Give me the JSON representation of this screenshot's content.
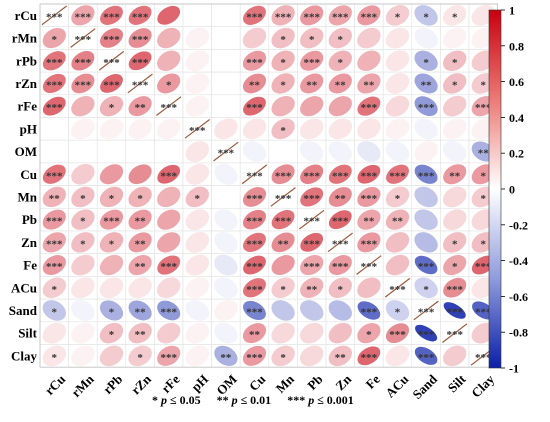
{
  "chart_data": {
    "type": "heatmap",
    "style": "ellipse-correlation",
    "variables": [
      "rCu",
      "rMn",
      "rPb",
      "rZn",
      "rFe",
      "pH",
      "OM",
      "Cu",
      "Mn",
      "Pb",
      "Zn",
      "Fe",
      "ACu",
      "Sand",
      "Silt",
      "Clay"
    ],
    "colorbar": {
      "range": [
        -1,
        1
      ],
      "ticks": [
        "1",
        "0.8",
        "0.6",
        "0.4",
        "0.2",
        "0",
        "-0.2",
        "-0.4",
        "-0.6",
        "-0.8",
        "-1"
      ],
      "colors": {
        "negative": "#0b1fa8",
        "zero": "#ffffff",
        "positive": "#c8000f"
      }
    },
    "matrix": [
      [
        1.0,
        0.35,
        0.55,
        0.55,
        0.6,
        0.0,
        0.0,
        0.55,
        0.3,
        0.4,
        0.35,
        0.4,
        0.2,
        -0.25,
        0.1,
        0.1
      ],
      [
        0.35,
        1.0,
        0.5,
        0.45,
        0.3,
        0.05,
        0.0,
        0.2,
        0.25,
        0.25,
        0.25,
        0.2,
        0.1,
        -0.05,
        0.05,
        0.05
      ],
      [
        0.55,
        0.5,
        1.0,
        0.6,
        0.3,
        0.05,
        0.0,
        0.4,
        0.3,
        0.4,
        0.3,
        0.3,
        0.1,
        -0.35,
        0.25,
        0.2
      ],
      [
        0.55,
        0.45,
        0.6,
        1.0,
        0.4,
        0.05,
        0.0,
        0.45,
        0.3,
        0.4,
        0.4,
        0.35,
        0.1,
        -0.4,
        0.25,
        0.2
      ],
      [
        0.6,
        0.3,
        0.3,
        0.4,
        1.0,
        0.05,
        0.0,
        0.6,
        0.3,
        0.35,
        0.35,
        0.55,
        0.15,
        -0.45,
        0.2,
        0.35
      ],
      [
        0.0,
        0.05,
        0.05,
        0.05,
        0.05,
        1.0,
        0.1,
        0.1,
        0.25,
        0.1,
        0.1,
        0.1,
        0.05,
        -0.05,
        0.05,
        0.05
      ],
      [
        0.0,
        0.0,
        0.0,
        0.0,
        0.0,
        0.1,
        1.0,
        -0.05,
        0.0,
        -0.05,
        -0.05,
        -0.1,
        -0.05,
        0.05,
        -0.05,
        -0.35
      ],
      [
        0.55,
        0.2,
        0.4,
        0.45,
        0.6,
        0.1,
        -0.05,
        1.0,
        0.45,
        0.5,
        0.55,
        0.6,
        0.55,
        -0.55,
        0.4,
        0.4
      ],
      [
        0.3,
        0.25,
        0.3,
        0.3,
        0.3,
        0.25,
        0.0,
        0.45,
        1.0,
        0.55,
        0.45,
        0.4,
        0.2,
        -0.25,
        0.15,
        0.2
      ],
      [
        0.4,
        0.25,
        0.4,
        0.4,
        0.35,
        0.1,
        -0.05,
        0.5,
        0.55,
        1.0,
        0.6,
        0.35,
        0.3,
        -0.25,
        0.15,
        0.15
      ],
      [
        0.35,
        0.25,
        0.3,
        0.4,
        0.35,
        0.1,
        -0.05,
        0.55,
        0.45,
        0.6,
        1.0,
        0.4,
        0.25,
        -0.3,
        0.25,
        0.25
      ],
      [
        0.4,
        0.2,
        0.3,
        0.35,
        0.55,
        0.1,
        -0.1,
        0.6,
        0.4,
        0.35,
        0.4,
        1.0,
        0.25,
        -0.65,
        0.35,
        0.6
      ],
      [
        0.2,
        0.1,
        0.1,
        0.1,
        0.15,
        0.05,
        -0.05,
        0.55,
        0.2,
        0.3,
        0.25,
        0.25,
        1.0,
        -0.2,
        0.45,
        0.1
      ],
      [
        -0.25,
        -0.05,
        -0.35,
        -0.4,
        -0.45,
        -0.05,
        0.05,
        -0.55,
        -0.25,
        -0.25,
        -0.3,
        -0.65,
        -0.2,
        1.0,
        -0.85,
        -0.7
      ],
      [
        0.1,
        0.05,
        0.25,
        0.25,
        0.2,
        0.05,
        -0.05,
        0.4,
        0.15,
        0.15,
        0.25,
        0.35,
        0.45,
        -0.85,
        1.0,
        0.2
      ],
      [
        0.1,
        0.05,
        0.2,
        0.2,
        0.35,
        0.05,
        -0.35,
        0.4,
        0.2,
        0.15,
        0.25,
        0.6,
        0.1,
        -0.7,
        0.2,
        1.0
      ]
    ],
    "stars": [
      [
        "***",
        "***",
        "***",
        "***",
        "",
        "",
        "",
        "***",
        "***",
        "***",
        "***",
        "***",
        "*",
        "*",
        "*",
        ""
      ],
      [
        "*",
        "***",
        "***",
        "***",
        "",
        "",
        "",
        "",
        "*",
        "*",
        "*",
        "",
        "",
        "",
        "",
        ""
      ],
      [
        "***",
        "***",
        "***",
        "***",
        "",
        "",
        "",
        "***",
        "*",
        "***",
        "*",
        "",
        "",
        "*",
        "*",
        ""
      ],
      [
        "***",
        "***",
        "***",
        "***",
        "*",
        "",
        "",
        "**",
        "*",
        "**",
        "**",
        "**",
        "",
        "**",
        "*",
        "*"
      ],
      [
        "***",
        "",
        "*",
        "**",
        "***",
        "",
        "",
        "***",
        "",
        "",
        "",
        "***",
        "",
        "***",
        "",
        "***"
      ],
      [
        "",
        "",
        "",
        "",
        "",
        "***",
        "",
        "",
        "*",
        "",
        "",
        "",
        "",
        "",
        "",
        ""
      ],
      [
        "",
        "",
        "",
        "",
        "",
        "",
        "***",
        "",
        "",
        "",
        "",
        "",
        "",
        "",
        "",
        "**"
      ],
      [
        "***",
        "",
        "",
        "",
        "***",
        "",
        "",
        "***",
        "***",
        "***",
        "***",
        "***",
        "***",
        "***",
        "**",
        "*"
      ],
      [
        "**",
        "*",
        "*",
        "*",
        "",
        "*",
        "",
        "***",
        "***",
        "***",
        "**",
        "***",
        "*",
        "",
        "",
        "*"
      ],
      [
        "***",
        "*",
        "***",
        "**",
        "",
        "",
        "",
        "***",
        "***",
        "***",
        "***",
        "**",
        "**",
        "",
        "",
        ""
      ],
      [
        "***",
        "*",
        "*",
        "**",
        "",
        "",
        "",
        "***",
        "**",
        "***",
        "***",
        "***",
        "",
        "",
        "*",
        "*"
      ],
      [
        "***",
        "",
        "",
        "**",
        "***",
        "",
        "",
        "***",
        "",
        "***",
        "***",
        "***",
        "",
        "***",
        "*",
        "***"
      ],
      [
        "*",
        "",
        "",
        "",
        "",
        "",
        "",
        "***",
        "*",
        "**",
        "*",
        "",
        "***",
        "*",
        "***",
        ""
      ],
      [
        "*",
        "",
        "*",
        "**",
        "***",
        "",
        "",
        "***",
        "",
        "",
        "",
        "***",
        "*",
        "***",
        "***",
        "***"
      ],
      [
        "",
        "",
        "*",
        "**",
        "",
        "",
        "",
        "**",
        "",
        "",
        "",
        "*",
        "***",
        "***",
        "***",
        ""
      ],
      [
        "*",
        "",
        "",
        "*",
        "***",
        "",
        "**",
        "***",
        "*",
        "",
        "**",
        "***",
        "",
        "***",
        "",
        "***"
      ]
    ]
  },
  "legend": {
    "items": [
      {
        "stars": "*",
        "text": "p ≤ 0.05"
      },
      {
        "stars": "**",
        "text": "p ≤ 0.01"
      },
      {
        "stars": "***",
        "text": "p ≤ 0.001"
      }
    ]
  }
}
